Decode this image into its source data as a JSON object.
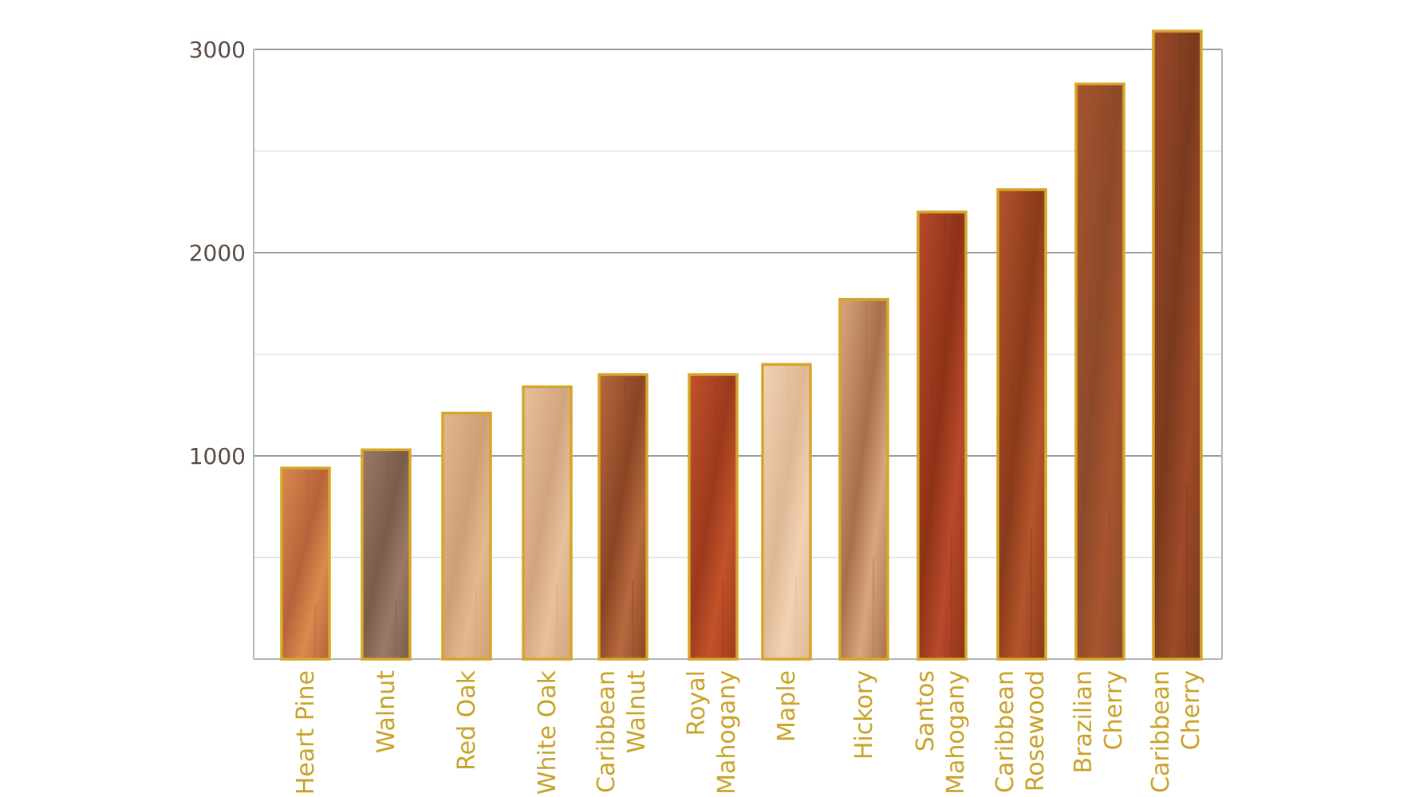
{
  "chart_data": {
    "type": "bar",
    "title": "",
    "xlabel": "",
    "ylabel": "",
    "ylim": [
      0,
      3000
    ],
    "yticks": [
      1000,
      2000,
      3000
    ],
    "yticks_labels": [
      "1000",
      "2000",
      "3000"
    ],
    "grid": true,
    "categories": [
      [
        "Heart Pine"
      ],
      [
        "Walnut"
      ],
      [
        "Red Oak"
      ],
      [
        "White Oak"
      ],
      [
        "Caribbean",
        "Walnut"
      ],
      [
        "Royal",
        "Mahogany"
      ],
      [
        "Maple"
      ],
      [
        "Hickory"
      ],
      [
        "Santos",
        "Mahogany"
      ],
      [
        "Caribbean",
        "Rosewood"
      ],
      [
        "Brazilian",
        "Cherry"
      ],
      [
        "Caribbean",
        "Cherry"
      ]
    ],
    "values": [
      940,
      1030,
      1210,
      1340,
      1400,
      1400,
      1450,
      1770,
      2200,
      2310,
      2830,
      3090
    ],
    "colors": {
      "bar_outline": "#d4a62a",
      "label_text": "#c9a227",
      "tick_text": "#5a4a44",
      "grid_major": "#9c9c9c",
      "grid_minor": "#e2e2e2",
      "axis": "#b5b5b5"
    },
    "bar_fills": [
      [
        "#d98a4e",
        "#b8623a"
      ],
      [
        "#9a7a66",
        "#7a5c4a"
      ],
      [
        "#e3b88e",
        "#cf9f74"
      ],
      [
        "#e6c09c",
        "#d2a57e"
      ],
      [
        "#b8693e",
        "#8a4524"
      ],
      [
        "#c2522a",
        "#9c3a1c"
      ],
      [
        "#f0d2b4",
        "#e0b894"
      ],
      [
        "#d8a67c",
        "#a8704a"
      ],
      [
        "#b84a2a",
        "#8e3218"
      ],
      [
        "#b3552c",
        "#8a3a1a"
      ],
      [
        "#a8542e",
        "#8c4a2a"
      ],
      [
        "#9e4a28",
        "#7a3a1e"
      ]
    ]
  }
}
